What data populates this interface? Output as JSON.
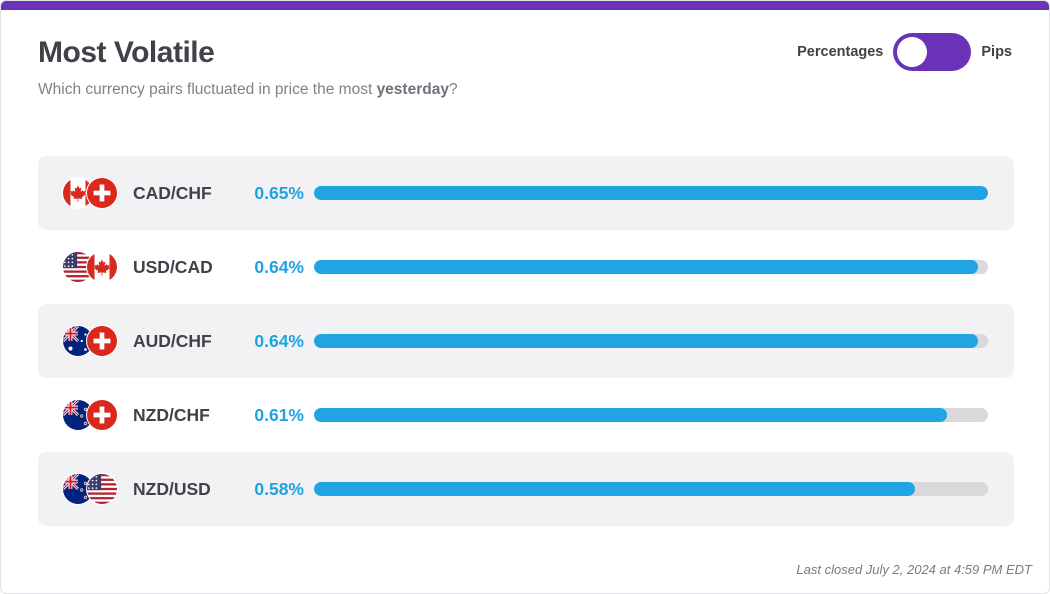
{
  "header": {
    "title": "Most Volatile",
    "subtitle_before": "Which currency pairs fluctuated in price the most ",
    "subtitle_bold": "yesterday",
    "subtitle_after": "?"
  },
  "toggle": {
    "left_label": "Percentages",
    "right_label": "Pips",
    "selected": "Percentages"
  },
  "colors": {
    "accent": "#6b34b8",
    "bar": "#21a4e3",
    "percent_text": "#1fa3e0"
  },
  "rows": [
    {
      "pair": "CAD/CHF",
      "percent": "0.65%",
      "value": 0.65,
      "flags": [
        "canada-flag-icon",
        "switzerland-flag-icon"
      ]
    },
    {
      "pair": "USD/CAD",
      "percent": "0.64%",
      "value": 0.64,
      "flags": [
        "usa-flag-icon",
        "canada-flag-icon"
      ]
    },
    {
      "pair": "AUD/CHF",
      "percent": "0.64%",
      "value": 0.64,
      "flags": [
        "australia-flag-icon",
        "switzerland-flag-icon"
      ]
    },
    {
      "pair": "NZD/CHF",
      "percent": "0.61%",
      "value": 0.61,
      "flags": [
        "new-zealand-flag-icon",
        "switzerland-flag-icon"
      ]
    },
    {
      "pair": "NZD/USD",
      "percent": "0.58%",
      "value": 0.58,
      "flags": [
        "new-zealand-flag-icon",
        "usa-flag-icon"
      ]
    }
  ],
  "footer": {
    "last_closed": "Last closed July 2, 2024 at 4:59 PM EDT"
  }
}
